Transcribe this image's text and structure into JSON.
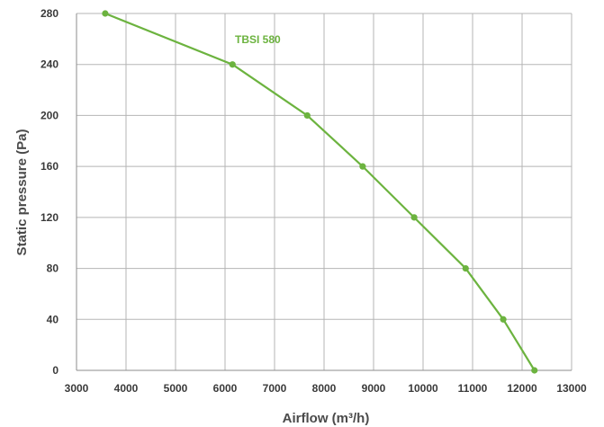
{
  "chart_data": {
    "type": "line",
    "title": "",
    "xlabel": "Airflow (m³/h)",
    "ylabel": "Static pressure (Pa)",
    "xlim": [
      3000,
      13000
    ],
    "ylim": [
      0,
      280
    ],
    "xticks": [
      "3000",
      "4000",
      "5000",
      "6000",
      "7000",
      "8000",
      "9000",
      "10000",
      "11000",
      "12000",
      "13000"
    ],
    "yticks": [
      "0",
      "40",
      "80",
      "120",
      "160",
      "200",
      "240",
      "280"
    ],
    "grid": true,
    "series": [
      {
        "name": "TBSI 580",
        "color": "#6cb33f",
        "points": [
          {
            "x": 3580,
            "y": 280
          },
          {
            "x": 6150,
            "y": 240
          },
          {
            "x": 7660,
            "y": 200
          },
          {
            "x": 8780,
            "y": 160
          },
          {
            "x": 9820,
            "y": 120
          },
          {
            "x": 10860,
            "y": 80
          },
          {
            "x": 11620,
            "y": 40
          },
          {
            "x": 12250,
            "y": 0
          }
        ]
      }
    ]
  }
}
